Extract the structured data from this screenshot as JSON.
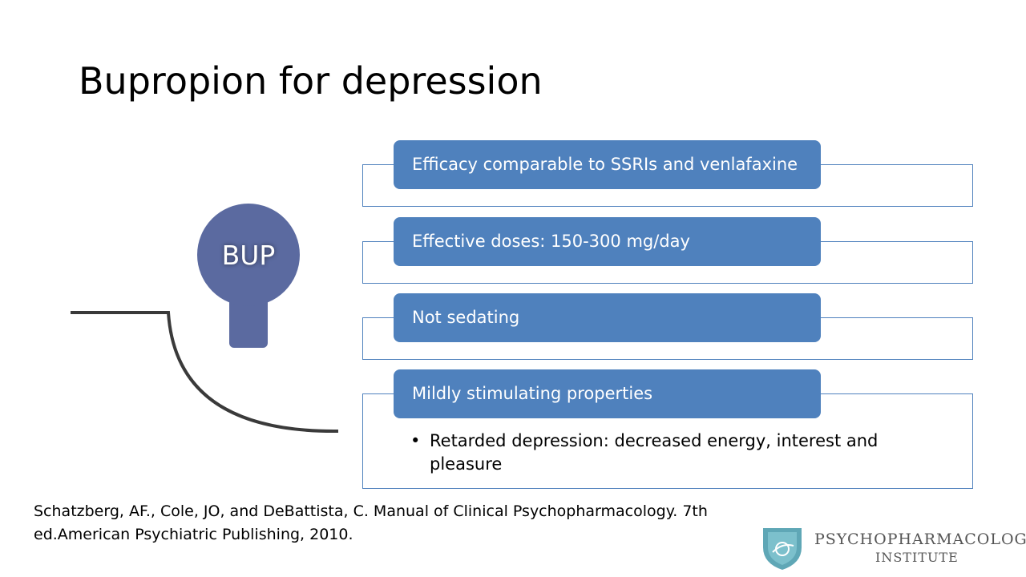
{
  "slide": {
    "title": "Bupropion for depression"
  },
  "diagram": {
    "bulb_label": "BUP",
    "items": [
      {
        "label": "Efficacy comparable to SSRIs and venlafaxine"
      },
      {
        "label": "Effective doses: 150-300 mg/day"
      },
      {
        "label": "Not sedating"
      },
      {
        "label": "Mildly stimulating properties",
        "sub_bullet": "Retarded depression: decreased energy, interest and pleasure"
      }
    ]
  },
  "reference": {
    "text": "Schatzberg, AF., Cole, JO, and DeBattista, C. Manual of Clinical Psychopharmacology. 7th ed.American Psychiatric Publishing, 2010."
  },
  "logo": {
    "line1": "PSYCHOPHARMACOLOGY",
    "line2": "INSTITUTE"
  },
  "colors": {
    "accent": "#4f81bd",
    "bulb": "#5b6aa0"
  }
}
